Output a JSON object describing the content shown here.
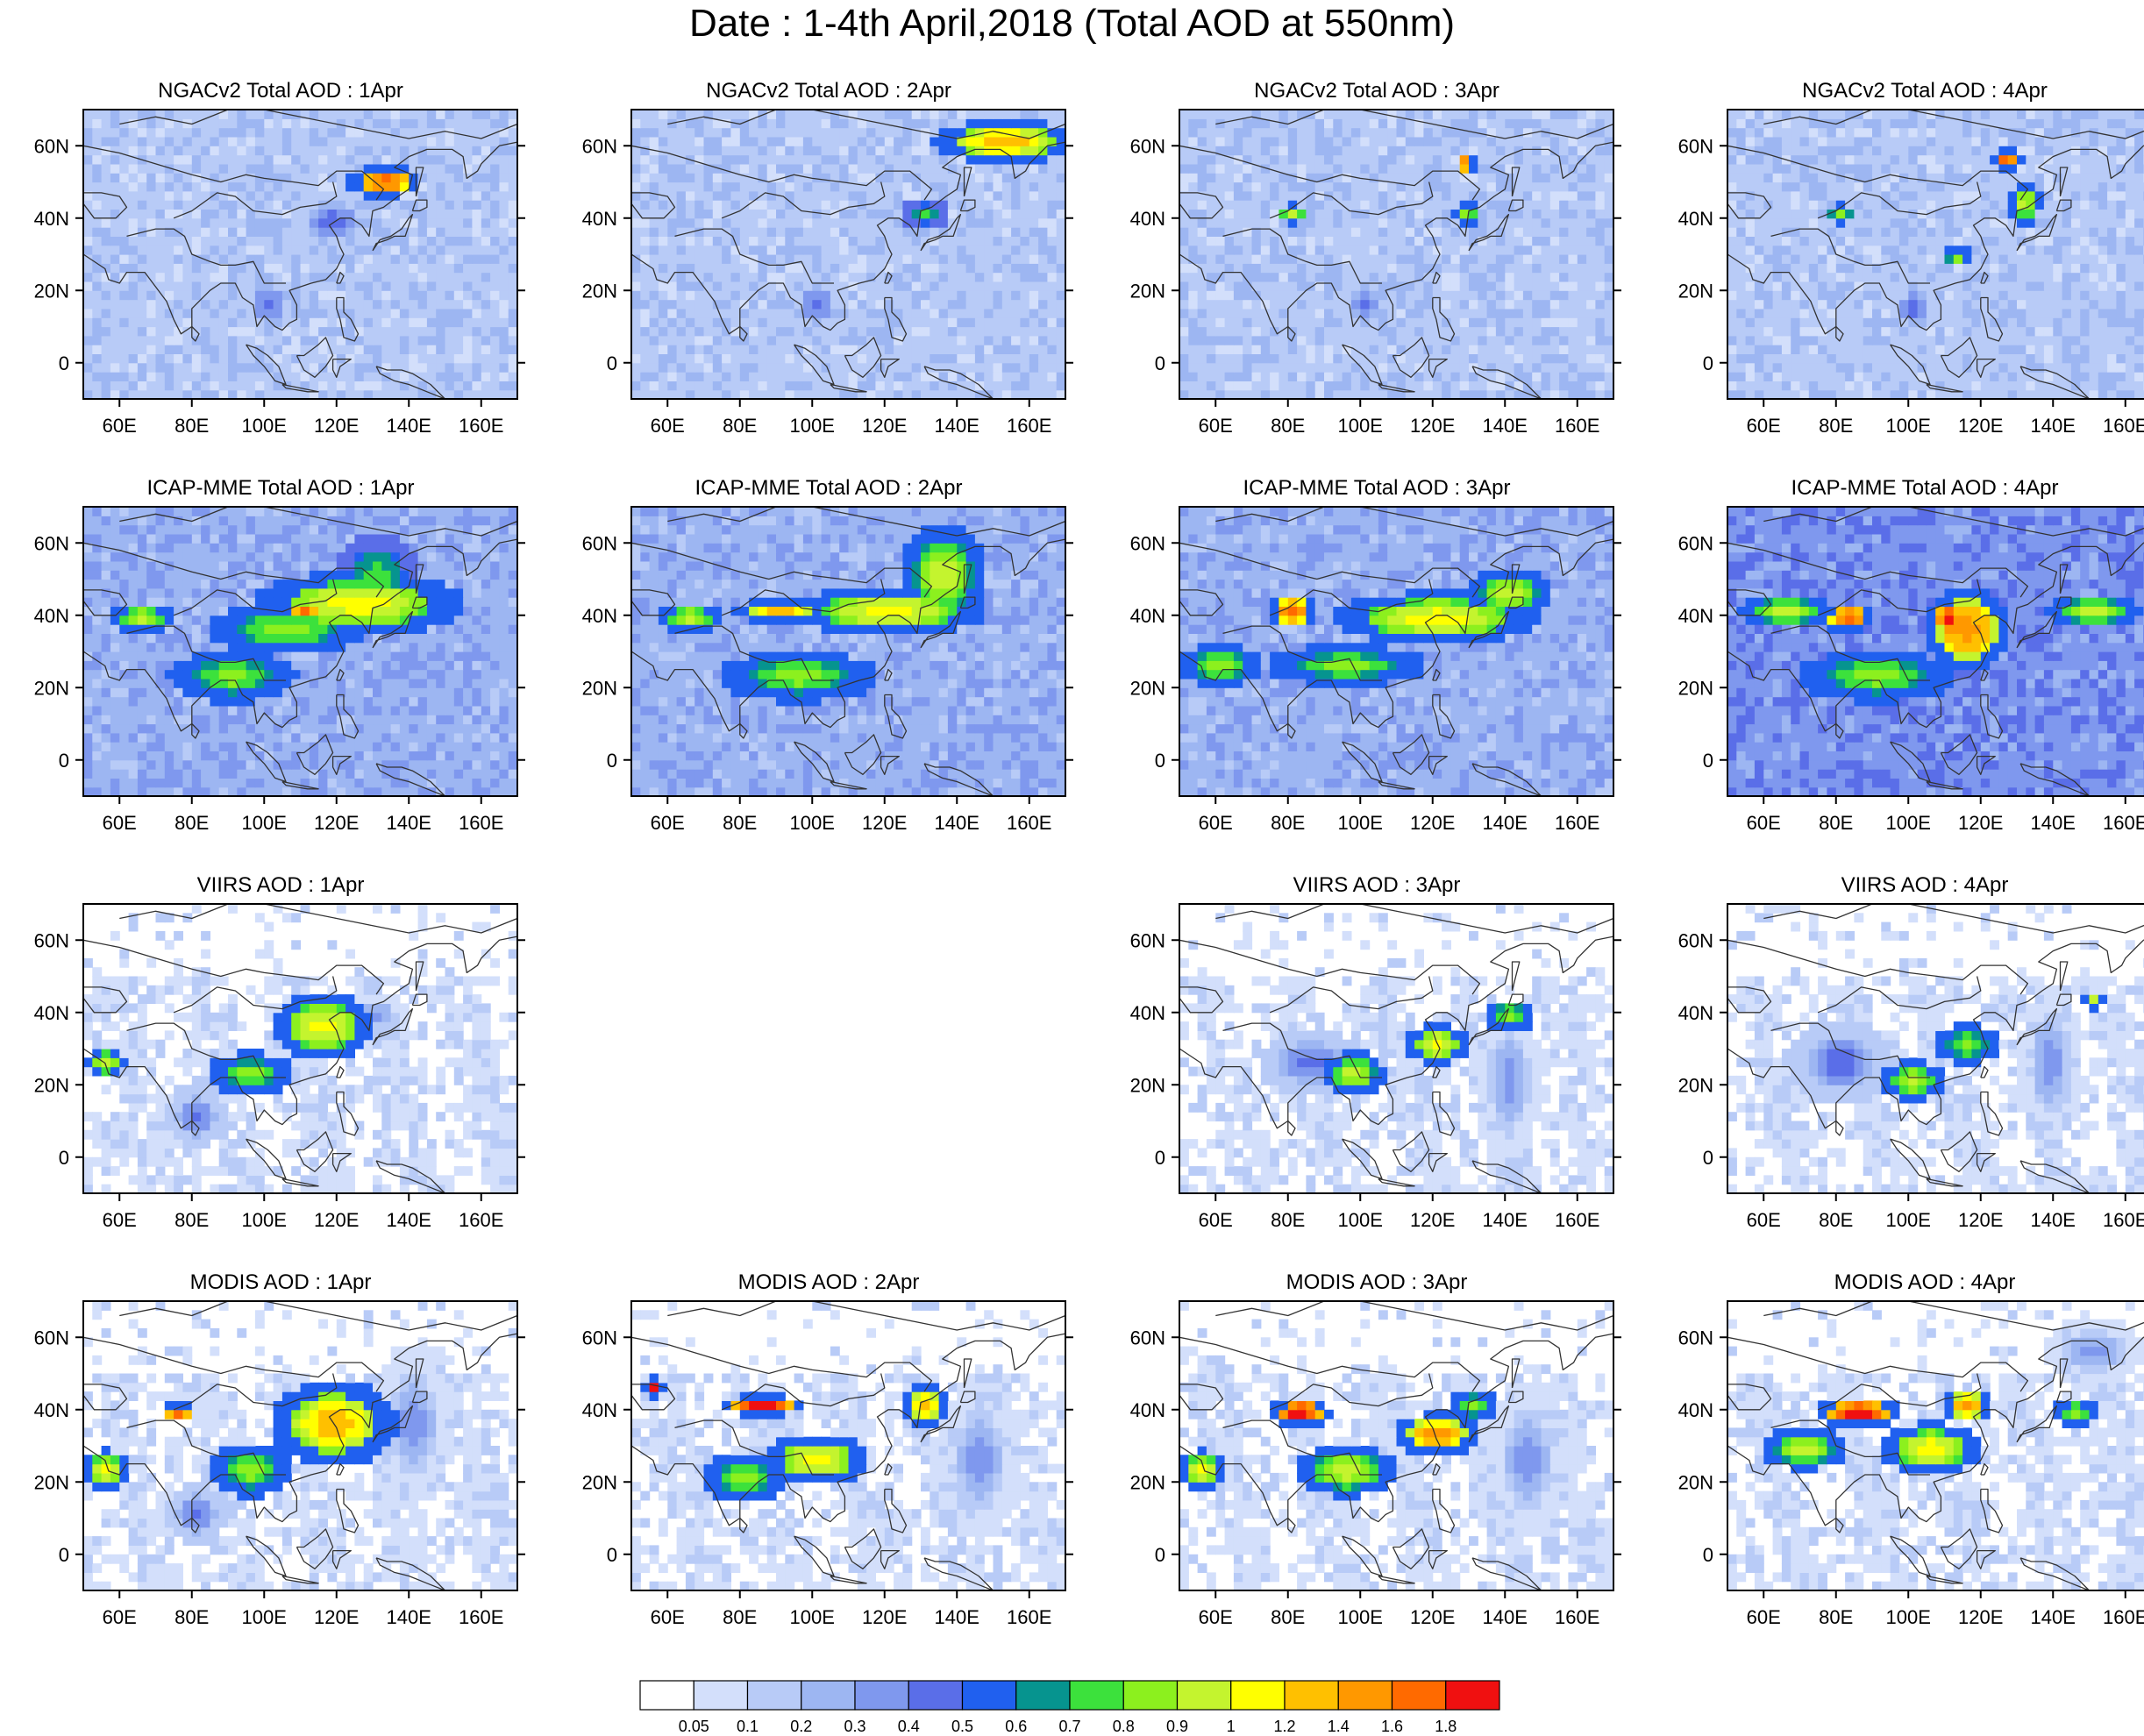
{
  "title": "Date : 1-4th April,2018 (Total AOD at 550nm)",
  "map": {
    "lon_range": [
      50,
      170
    ],
    "lat_range": [
      -10,
      70
    ],
    "lon_ticks": [
      60,
      80,
      100,
      120,
      140,
      160
    ],
    "lon_tick_labels": [
      "60E",
      "80E",
      "100E",
      "120E",
      "140E",
      "160E"
    ],
    "lat_ticks": [
      0,
      20,
      40,
      60
    ],
    "lat_tick_labels": [
      "0",
      "20N",
      "40N",
      "60N"
    ],
    "color_levels": [
      "0.05",
      "0.1",
      "0.2",
      "0.3",
      "0.4",
      "0.5",
      "0.6",
      "0.7",
      "0.8",
      "0.9",
      "1",
      "1.2",
      "1.4",
      "1.6",
      "1.8"
    ],
    "color_palette": [
      "#ffffff",
      "#d3dffb",
      "#b8cbf7",
      "#9db6f2",
      "#7f98ee",
      "#5a6ee8",
      "#2060ef",
      "#06948f",
      "#3ce13c",
      "#8cf01e",
      "#c4f42e",
      "#ffff00",
      "#ffc000",
      "#ff9800",
      "#ff6a00",
      "#f01010"
    ]
  },
  "rows": [
    {
      "source": "NGACv2",
      "panels": [
        {
          "title": "NGACv2 Total AOD : 1Apr",
          "day": "1Apr",
          "bg": 2,
          "available": true,
          "features": [
            {
              "lon": 132,
              "lat": 49,
              "level": 14,
              "rx": 7,
              "ry": 3
            },
            {
              "lon": 118,
              "lat": 38,
              "level": 5,
              "rx": 8,
              "ry": 6
            },
            {
              "lon": 100,
              "lat": 15,
              "level": 5,
              "rx": 5,
              "ry": 6
            },
            {
              "lon": 95,
              "lat": 45,
              "level": 0,
              "rx": 18,
              "ry": 6
            },
            {
              "lon": 130,
              "lat": 0,
              "level": 0,
              "rx": 30,
              "ry": 8
            }
          ]
        },
        {
          "title": "NGACv2 Total AOD : 2Apr",
          "day": "2Apr",
          "bg": 2,
          "available": true,
          "features": [
            {
              "lon": 152,
              "lat": 60,
              "level": 12,
              "rx": 14,
              "ry": 4
            },
            {
              "lon": 130,
              "lat": 40,
              "level": 8,
              "rx": 5,
              "ry": 3
            },
            {
              "lon": 100,
              "lat": 15,
              "level": 5,
              "rx": 5,
              "ry": 6
            },
            {
              "lon": 95,
              "lat": 43,
              "level": 0,
              "rx": 15,
              "ry": 5
            },
            {
              "lon": 130,
              "lat": 0,
              "level": 1,
              "rx": 30,
              "ry": 8
            }
          ]
        },
        {
          "title": "NGACv2 Total AOD : 3Apr",
          "day": "3Apr",
          "bg": 2,
          "available": true,
          "features": [
            {
              "lon": 128,
              "lat": 54,
              "level": 14,
              "rx": 2,
              "ry": 2
            },
            {
              "lon": 80,
              "lat": 40,
              "level": 10,
              "rx": 3,
              "ry": 2
            },
            {
              "lon": 128,
              "lat": 40,
              "level": 9,
              "rx": 3,
              "ry": 2
            },
            {
              "lon": 100,
              "lat": 15,
              "level": 5,
              "rx": 4,
              "ry": 6
            },
            {
              "lon": 95,
              "lat": 40,
              "level": 0,
              "rx": 10,
              "ry": 5
            }
          ]
        },
        {
          "title": "NGACv2 Total AOD : 4Apr",
          "day": "4Apr",
          "bg": 2,
          "available": true,
          "features": [
            {
              "lon": 126,
              "lat": 55,
              "level": 14,
              "rx": 3,
              "ry": 2
            },
            {
              "lon": 131,
              "lat": 43,
              "level": 10,
              "rx": 3,
              "ry": 4
            },
            {
              "lon": 80,
              "lat": 40,
              "level": 9,
              "rx": 3,
              "ry": 2
            },
            {
              "lon": 112,
              "lat": 28,
              "level": 9,
              "rx": 3,
              "ry": 2
            },
            {
              "lon": 100,
              "lat": 14,
              "level": 5,
              "rx": 4,
              "ry": 5
            }
          ]
        }
      ]
    },
    {
      "source": "ICAP-MME",
      "panels": [
        {
          "title": "ICAP-MME Total AOD : 1Apr",
          "day": "1Apr",
          "bg": 3,
          "available": true,
          "features": [
            {
              "lon": 125,
              "lat": 42,
              "level": 11,
              "rx": 20,
              "ry": 6
            },
            {
              "lon": 105,
              "lat": 35,
              "level": 9,
              "rx": 15,
              "ry": 5
            },
            {
              "lon": 90,
              "lat": 22,
              "level": 9,
              "rx": 12,
              "ry": 5
            },
            {
              "lon": 65,
              "lat": 38,
              "level": 10,
              "rx": 6,
              "ry": 3
            },
            {
              "lon": 110,
              "lat": 40,
              "level": 14,
              "rx": 3,
              "ry": 2
            },
            {
              "lon": 130,
              "lat": 50,
              "level": 8,
              "rx": 8,
              "ry": 8
            }
          ]
        },
        {
          "title": "ICAP-MME Total AOD : 2Apr",
          "day": "2Apr",
          "bg": 3,
          "available": true,
          "features": [
            {
              "lon": 120,
              "lat": 40,
              "level": 11,
              "rx": 18,
              "ry": 5
            },
            {
              "lon": 135,
              "lat": 50,
              "level": 10,
              "rx": 8,
              "ry": 10
            },
            {
              "lon": 90,
              "lat": 40,
              "level": 12,
              "rx": 10,
              "ry": 2
            },
            {
              "lon": 95,
              "lat": 22,
              "level": 9,
              "rx": 15,
              "ry": 5
            },
            {
              "lon": 65,
              "lat": 38,
              "level": 10,
              "rx": 6,
              "ry": 3
            }
          ]
        },
        {
          "title": "ICAP-MME Total AOD : 3Apr",
          "day": "3Apr",
          "bg": 3,
          "available": true,
          "features": [
            {
              "lon": 80,
              "lat": 40,
              "level": 14,
              "rx": 5,
              "ry": 3
            },
            {
              "lon": 120,
              "lat": 38,
              "level": 11,
              "rx": 20,
              "ry": 5
            },
            {
              "lon": 140,
              "lat": 45,
              "level": 10,
              "rx": 8,
              "ry": 5
            },
            {
              "lon": 95,
              "lat": 25,
              "level": 9,
              "rx": 15,
              "ry": 4
            },
            {
              "lon": 60,
              "lat": 25,
              "level": 9,
              "rx": 8,
              "ry": 4
            }
          ]
        },
        {
          "title": "ICAP-MME Total AOD : 4Apr",
          "day": "4Apr",
          "bg": 4,
          "available": true,
          "features": [
            {
              "lon": 115,
              "lat": 35,
              "level": 13,
              "rx": 8,
              "ry": 8
            },
            {
              "lon": 82,
              "lat": 38,
              "level": 14,
              "rx": 5,
              "ry": 3
            },
            {
              "lon": 110,
              "lat": 38,
              "level": 15,
              "rx": 3,
              "ry": 4
            },
            {
              "lon": 150,
              "lat": 40,
              "level": 10,
              "rx": 10,
              "ry": 3
            },
            {
              "lon": 90,
              "lat": 22,
              "level": 9,
              "rx": 15,
              "ry": 5
            },
            {
              "lon": 65,
              "lat": 40,
              "level": 10,
              "rx": 10,
              "ry": 3
            }
          ]
        }
      ]
    },
    {
      "source": "VIIRS",
      "panels": [
        {
          "title": "VIIRS AOD : 1Apr",
          "day": "1Apr",
          "bg": 1,
          "available": true,
          "features": [
            {
              "lon": 115,
              "lat": 35,
              "level": 11,
              "rx": 10,
              "ry": 6
            },
            {
              "lon": 95,
              "lat": 22,
              "level": 9,
              "rx": 8,
              "ry": 4
            },
            {
              "lon": 80,
              "lat": 10,
              "level": 5,
              "rx": 6,
              "ry": 6
            },
            {
              "lon": 55,
              "lat": 25,
              "level": 10,
              "rx": 4,
              "ry": 3
            },
            {
              "lon": 130,
              "lat": 38,
              "level": 4,
              "rx": 6,
              "ry": 4
            }
          ]
        },
        {
          "title": "",
          "day": "2Apr",
          "bg": 0,
          "available": false,
          "features": []
        },
        {
          "title": "VIIRS AOD : 3Apr",
          "day": "3Apr",
          "bg": 1,
          "available": true,
          "features": [
            {
              "lon": 120,
              "lat": 30,
              "level": 11,
              "rx": 6,
              "ry": 4
            },
            {
              "lon": 97,
              "lat": 22,
              "level": 10,
              "rx": 6,
              "ry": 4
            },
            {
              "lon": 140,
              "lat": 38,
              "level": 9,
              "rx": 5,
              "ry": 3
            },
            {
              "lon": 85,
              "lat": 25,
              "level": 5,
              "rx": 10,
              "ry": 6
            },
            {
              "lon": 140,
              "lat": 20,
              "level": 4,
              "rx": 6,
              "ry": 15
            }
          ]
        },
        {
          "title": "VIIRS AOD : 4Apr",
          "day": "4Apr",
          "bg": 1,
          "available": true,
          "features": [
            {
              "lon": 100,
              "lat": 20,
              "level": 10,
              "rx": 6,
              "ry": 4
            },
            {
              "lon": 115,
              "lat": 30,
              "level": 9,
              "rx": 6,
              "ry": 4
            },
            {
              "lon": 80,
              "lat": 25,
              "level": 5,
              "rx": 10,
              "ry": 8
            },
            {
              "lon": 138,
              "lat": 25,
              "level": 4,
              "rx": 6,
              "ry": 15
            },
            {
              "lon": 150,
              "lat": 42,
              "level": 10,
              "rx": 2,
              "ry": 2
            }
          ]
        }
      ]
    },
    {
      "source": "MODIS",
      "panels": [
        {
          "title": "MODIS AOD : 1Apr",
          "day": "1Apr",
          "bg": 1,
          "available": true,
          "features": [
            {
              "lon": 118,
              "lat": 35,
              "level": 12,
              "rx": 12,
              "ry": 8
            },
            {
              "lon": 95,
              "lat": 22,
              "level": 9,
              "rx": 8,
              "ry": 5
            },
            {
              "lon": 80,
              "lat": 10,
              "level": 5,
              "rx": 6,
              "ry": 6
            },
            {
              "lon": 55,
              "lat": 22,
              "level": 11,
              "rx": 4,
              "ry": 4
            },
            {
              "lon": 75,
              "lat": 38,
              "level": 14,
              "rx": 3,
              "ry": 2
            },
            {
              "lon": 140,
              "lat": 35,
              "level": 4,
              "rx": 8,
              "ry": 15
            }
          ]
        },
        {
          "title": "MODIS AOD : 2Apr",
          "day": "2Apr",
          "bg": 1,
          "available": true,
          "features": [
            {
              "lon": 85,
              "lat": 40,
              "level": 15,
              "rx": 8,
              "ry": 2
            },
            {
              "lon": 100,
              "lat": 25,
              "level": 11,
              "rx": 10,
              "ry": 5
            },
            {
              "lon": 130,
              "lat": 40,
              "level": 12,
              "rx": 5,
              "ry": 4
            },
            {
              "lon": 80,
              "lat": 20,
              "level": 9,
              "rx": 8,
              "ry": 5
            },
            {
              "lon": 55,
              "lat": 45,
              "level": 15,
              "rx": 2,
              "ry": 2
            },
            {
              "lon": 145,
              "lat": 25,
              "level": 4,
              "rx": 8,
              "ry": 15
            }
          ]
        },
        {
          "title": "MODIS AOD : 3Apr",
          "day": "3Apr",
          "bg": 1,
          "available": true,
          "features": [
            {
              "lon": 82,
              "lat": 38,
              "level": 15,
              "rx": 6,
              "ry": 3
            },
            {
              "lon": 120,
              "lat": 32,
              "level": 13,
              "rx": 8,
              "ry": 4
            },
            {
              "lon": 95,
              "lat": 22,
              "level": 10,
              "rx": 10,
              "ry": 5
            },
            {
              "lon": 55,
              "lat": 22,
              "level": 11,
              "rx": 4,
              "ry": 4
            },
            {
              "lon": 130,
              "lat": 40,
              "level": 9,
              "rx": 5,
              "ry": 3
            },
            {
              "lon": 145,
              "lat": 25,
              "level": 4,
              "rx": 8,
              "ry": 15
            }
          ]
        },
        {
          "title": "MODIS AOD : 4Apr",
          "day": "4Apr",
          "bg": 1,
          "available": true,
          "features": [
            {
              "lon": 85,
              "lat": 38,
              "level": 15,
              "rx": 8,
              "ry": 3
            },
            {
              "lon": 105,
              "lat": 28,
              "level": 11,
              "rx": 10,
              "ry": 5
            },
            {
              "lon": 70,
              "lat": 28,
              "level": 10,
              "rx": 8,
              "ry": 4
            },
            {
              "lon": 115,
              "lat": 40,
              "level": 13,
              "rx": 5,
              "ry": 3
            },
            {
              "lon": 145,
              "lat": 38,
              "level": 9,
              "rx": 4,
              "ry": 3
            },
            {
              "lon": 150,
              "lat": 55,
              "level": 4,
              "rx": 10,
              "ry": 6
            }
          ]
        }
      ]
    }
  ]
}
